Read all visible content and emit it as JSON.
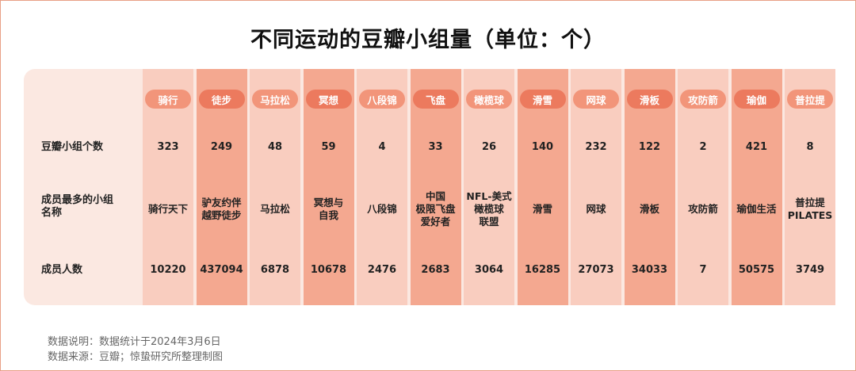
{
  "title": "不同运动的豆瓣小组量（单位：个）",
  "row_labels": {
    "groups": "豆瓣小组个数",
    "largest_group": "成员最多的小组\n名称",
    "members": "成员人数"
  },
  "colors": {
    "light_col_bg": "#f9cdbf",
    "dark_col_bg": "#f4a890",
    "light_hdr": "#f2957a",
    "dark_hdr": "#ec7a5e",
    "panel_bg": "#fbe8e1"
  },
  "chart_data": {
    "type": "table",
    "categories": [
      "骑行",
      "徒步",
      "马拉松",
      "冥想",
      "八段锦",
      "飞盘",
      "橄榄球",
      "滑雪",
      "网球",
      "滑板",
      "攻防箭",
      "瑜伽",
      "普拉提"
    ],
    "series": [
      {
        "name": "豆瓣小组个数",
        "values": [
          323,
          249,
          48,
          59,
          4,
          33,
          26,
          140,
          232,
          122,
          2,
          421,
          8
        ]
      },
      {
        "name": "成员人数",
        "values": [
          10220,
          437094,
          6878,
          10678,
          2476,
          2683,
          3064,
          16285,
          27073,
          34033,
          7,
          50575,
          3749
        ]
      }
    ],
    "group_names": [
      "骑行天下",
      "驴友约伴\n越野徒步",
      "马拉松",
      "冥想与\n自我",
      "八段锦",
      "中国\n极限飞盘\n爱好者",
      "NFL-美式\n橄榄球\n联盟",
      "滑雪",
      "网球",
      "滑板",
      "攻防箭",
      "瑜伽生活",
      "普拉提\nPILATES"
    ]
  },
  "notes": {
    "line1": "数据说明：数据统计于2024年3月6日",
    "line2": "数据来源：豆瓣；惊蛰研究所整理制图"
  }
}
